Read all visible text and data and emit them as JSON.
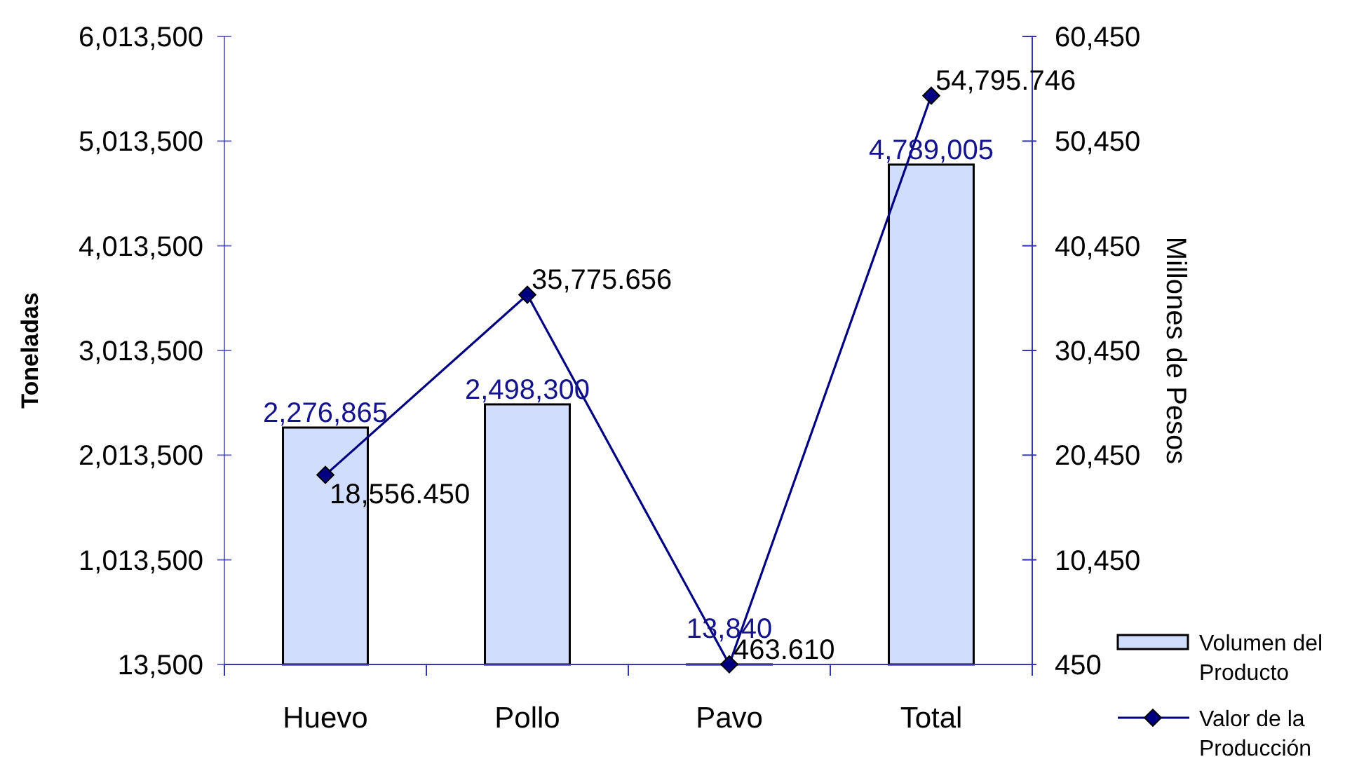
{
  "chart_data": {
    "type": "bar",
    "categories": [
      "Huevo",
      "Pollo",
      "Pavo",
      "Total"
    ],
    "ylabel": "Toneladas",
    "y2label": "Millones de Pesos",
    "ylim": [
      13500,
      6013500
    ],
    "yticks": [
      {
        "value": 13500,
        "label": "13,500"
      },
      {
        "value": 1013500,
        "label": "1,013,500"
      },
      {
        "value": 2013500,
        "label": "2,013,500"
      },
      {
        "value": 3013500,
        "label": "3,013,500"
      },
      {
        "value": 4013500,
        "label": "4,013,500"
      },
      {
        "value": 5013500,
        "label": "5,013,500"
      },
      {
        "value": 6013500,
        "label": "6,013,500"
      }
    ],
    "y2lim": [
      450,
      60450
    ],
    "y2ticks": [
      450,
      {
        "value": 10450,
        "label": "10,450"
      },
      {
        "value": 20450,
        "label": "20,450"
      },
      {
        "value": 30450,
        "label": "30,450"
      },
      {
        "value": 40450,
        "label": "40,450"
      },
      {
        "value": 50450,
        "label": "50,450"
      },
      {
        "value": 60450,
        "label": "60,450"
      }
    ],
    "series": [
      {
        "name": "Volumen del Producto",
        "color": "#d1ddfc",
        "values": [
          2276865,
          2498300,
          13840,
          4789005
        ],
        "value_labels": [
          "2,276,865",
          "2,498,300",
          "13,840",
          "4,789,005"
        ]
      },
      {
        "name": "Valor de la Producción",
        "type": "line",
        "axis": "y2",
        "color": "#000080",
        "values": [
          18556.45,
          35775.656,
          463.61,
          54795.746
        ],
        "value_labels": [
          "18,556.450",
          "35,775.656",
          "463.610",
          "54,795.746"
        ]
      }
    ],
    "marker": "diamond",
    "legend": "bottom right"
  }
}
